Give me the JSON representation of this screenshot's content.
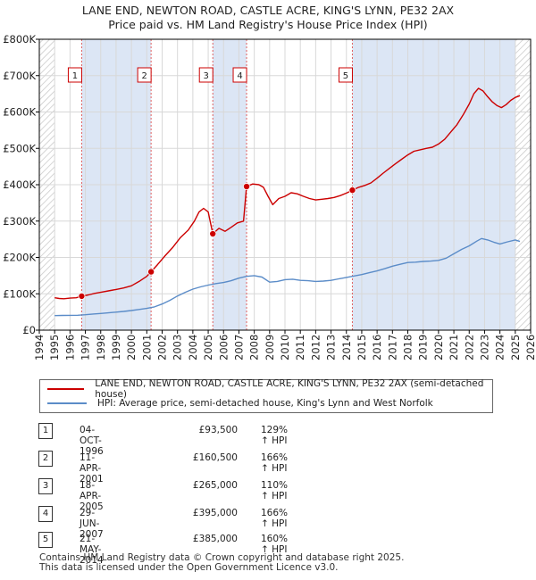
{
  "title_line1": "LANE END, NEWTON ROAD, CASTLE ACRE, KING'S LYNN, PE32 2AX",
  "title_line2": "Price paid vs. HM Land Registry's House Price Index (HPI)",
  "colors": {
    "price_paid": "#cc0000",
    "hpi": "#5b8cc8",
    "shade": "#dce6f5",
    "grid": "#d8d8d8",
    "marker_line": "#e06060"
  },
  "legend": {
    "price_paid_label": "LANE END, NEWTON ROAD, CASTLE ACRE, KING'S LYNN, PE32 2AX (semi-detached house)",
    "hpi_label": "HPI: Average price, semi-detached house, King's Lynn and West Norfolk"
  },
  "transactions": [
    {
      "num": "1",
      "date": "04-OCT-1996",
      "price": "£93,500",
      "hpi": "129% ↑ HPI"
    },
    {
      "num": "2",
      "date": "11-APR-2001",
      "price": "£160,500",
      "hpi": "166% ↑ HPI"
    },
    {
      "num": "3",
      "date": "18-APR-2005",
      "price": "£265,000",
      "hpi": "110% ↑ HPI"
    },
    {
      "num": "4",
      "date": "29-JUN-2007",
      "price": "£395,000",
      "hpi": "166% ↑ HPI"
    },
    {
      "num": "5",
      "date": "21-MAY-2014",
      "price": "£385,000",
      "hpi": "160% ↑ HPI"
    }
  ],
  "footer_line1": "Contains HM Land Registry data © Crown copyright and database right 2025.",
  "footer_line2": "This data is licensed under the Open Government Licence v3.0.",
  "chart_data": {
    "type": "line",
    "title": "LANE END, NEWTON ROAD, CASTLE ACRE, KING'S LYNN, PE32 2AX",
    "subtitle": "Price paid vs. HM Land Registry's House Price Index (HPI)",
    "xlim": [
      1994,
      2026
    ],
    "ylim": [
      0,
      800000
    ],
    "x_ticks": [
      "1994",
      "1995",
      "1996",
      "1997",
      "1998",
      "1999",
      "2000",
      "2001",
      "2002",
      "2003",
      "2004",
      "2005",
      "2006",
      "2007",
      "2008",
      "2009",
      "2010",
      "2011",
      "2012",
      "2013",
      "2014",
      "2015",
      "2016",
      "2017",
      "2018",
      "2019",
      "2020",
      "2021",
      "2022",
      "2023",
      "2024",
      "2025",
      "2026"
    ],
    "y_ticks": [
      {
        "value": 0,
        "label": "£0"
      },
      {
        "value": 100000,
        "label": "£100K"
      },
      {
        "value": 200000,
        "label": "£200K"
      },
      {
        "value": 300000,
        "label": "£300K"
      },
      {
        "value": 400000,
        "label": "£400K"
      },
      {
        "value": 500000,
        "label": "£500K"
      },
      {
        "value": 600000,
        "label": "£600K"
      },
      {
        "value": 700000,
        "label": "£700K"
      },
      {
        "value": 800000,
        "label": "£800K"
      }
    ],
    "grid": true,
    "shaded_periods": [
      [
        1994.0,
        1995.0
      ],
      [
        1996.76,
        2001.28
      ],
      [
        2005.3,
        2007.5
      ],
      [
        2014.39,
        2025.0
      ]
    ],
    "hatched_periods": [
      [
        1994.0,
        1995.0
      ],
      [
        2025.0,
        2026.0
      ]
    ],
    "sales": [
      {
        "label": "1",
        "x": 1996.76,
        "y": 93500
      },
      {
        "label": "2",
        "x": 2001.28,
        "y": 160500
      },
      {
        "label": "3",
        "x": 2005.3,
        "y": 265000
      },
      {
        "label": "4",
        "x": 2007.5,
        "y": 395000
      },
      {
        "label": "5",
        "x": 2014.39,
        "y": 385000
      }
    ],
    "series": [
      {
        "name": "LANE END, NEWTON ROAD, CASTLE ACRE, KING'S LYNN, PE32 2AX (semi-detached house)",
        "points": [
          [
            1995.0,
            89000
          ],
          [
            1995.3,
            87000
          ],
          [
            1995.6,
            86500
          ],
          [
            1996.0,
            88000
          ],
          [
            1996.4,
            89000
          ],
          [
            1996.76,
            93500
          ],
          [
            1997.2,
            97000
          ],
          [
            1997.6,
            101000
          ],
          [
            1998.0,
            104000
          ],
          [
            1998.5,
            108000
          ],
          [
            1999.0,
            112000
          ],
          [
            1999.5,
            116000
          ],
          [
            2000.0,
            122000
          ],
          [
            2000.5,
            134000
          ],
          [
            2001.0,
            148000
          ],
          [
            2001.28,
            160500
          ],
          [
            2001.7,
            180000
          ],
          [
            2002.2,
            205000
          ],
          [
            2002.7,
            228000
          ],
          [
            2003.2,
            255000
          ],
          [
            2003.7,
            275000
          ],
          [
            2004.1,
            300000
          ],
          [
            2004.4,
            325000
          ],
          [
            2004.7,
            335000
          ],
          [
            2005.0,
            325000
          ],
          [
            2005.3,
            265000
          ],
          [
            2005.7,
            280000
          ],
          [
            2006.1,
            272000
          ],
          [
            2006.5,
            283000
          ],
          [
            2006.9,
            295000
          ],
          [
            2007.3,
            300000
          ],
          [
            2007.5,
            395000
          ],
          [
            2007.9,
            402000
          ],
          [
            2008.3,
            400000
          ],
          [
            2008.6,
            393000
          ],
          [
            2008.9,
            368000
          ],
          [
            2009.2,
            345000
          ],
          [
            2009.6,
            362000
          ],
          [
            2010.0,
            368000
          ],
          [
            2010.4,
            378000
          ],
          [
            2010.8,
            375000
          ],
          [
            2011.2,
            368000
          ],
          [
            2011.6,
            362000
          ],
          [
            2012.0,
            358000
          ],
          [
            2012.4,
            360000
          ],
          [
            2012.8,
            362000
          ],
          [
            2013.2,
            365000
          ],
          [
            2013.6,
            370000
          ],
          [
            2014.0,
            377000
          ],
          [
            2014.39,
            385000
          ],
          [
            2014.8,
            393000
          ],
          [
            2015.2,
            398000
          ],
          [
            2015.6,
            405000
          ],
          [
            2016.0,
            418000
          ],
          [
            2016.4,
            432000
          ],
          [
            2016.8,
            445000
          ],
          [
            2017.2,
            458000
          ],
          [
            2017.6,
            470000
          ],
          [
            2018.0,
            482000
          ],
          [
            2018.4,
            492000
          ],
          [
            2018.8,
            496000
          ],
          [
            2019.2,
            500000
          ],
          [
            2019.6,
            503000
          ],
          [
            2020.0,
            512000
          ],
          [
            2020.4,
            525000
          ],
          [
            2020.8,
            545000
          ],
          [
            2021.2,
            565000
          ],
          [
            2021.6,
            592000
          ],
          [
            2022.0,
            622000
          ],
          [
            2022.3,
            650000
          ],
          [
            2022.6,
            665000
          ],
          [
            2022.9,
            658000
          ],
          [
            2023.2,
            642000
          ],
          [
            2023.5,
            628000
          ],
          [
            2023.8,
            618000
          ],
          [
            2024.1,
            612000
          ],
          [
            2024.4,
            620000
          ],
          [
            2024.7,
            632000
          ],
          [
            2025.0,
            640000
          ],
          [
            2025.3,
            645000
          ]
        ]
      },
      {
        "name": "HPI: Average price, semi-detached house, King's Lynn and West Norfolk",
        "points": [
          [
            1995.0,
            40000
          ],
          [
            1995.5,
            40500
          ],
          [
            1996.0,
            40800
          ],
          [
            1996.5,
            41000
          ],
          [
            1997.0,
            42500
          ],
          [
            1997.5,
            44500
          ],
          [
            1998.0,
            46000
          ],
          [
            1998.5,
            47500
          ],
          [
            1999.0,
            49500
          ],
          [
            1999.5,
            51500
          ],
          [
            2000.0,
            54000
          ],
          [
            2000.5,
            57000
          ],
          [
            2001.0,
            60000
          ],
          [
            2001.5,
            64000
          ],
          [
            2002.0,
            72000
          ],
          [
            2002.5,
            82000
          ],
          [
            2003.0,
            94000
          ],
          [
            2003.5,
            104000
          ],
          [
            2004.0,
            113000
          ],
          [
            2004.5,
            119000
          ],
          [
            2005.0,
            124000
          ],
          [
            2005.5,
            128000
          ],
          [
            2006.0,
            131000
          ],
          [
            2006.5,
            136000
          ],
          [
            2007.0,
            143000
          ],
          [
            2007.5,
            148000
          ],
          [
            2008.0,
            150000
          ],
          [
            2008.5,
            146000
          ],
          [
            2009.0,
            132000
          ],
          [
            2009.5,
            134000
          ],
          [
            2010.0,
            139000
          ],
          [
            2010.5,
            140000
          ],
          [
            2011.0,
            137000
          ],
          [
            2011.5,
            136000
          ],
          [
            2012.0,
            134000
          ],
          [
            2012.5,
            135000
          ],
          [
            2013.0,
            137000
          ],
          [
            2013.5,
            141000
          ],
          [
            2014.0,
            145000
          ],
          [
            2014.5,
            149000
          ],
          [
            2015.0,
            153000
          ],
          [
            2015.5,
            158000
          ],
          [
            2016.0,
            163000
          ],
          [
            2016.5,
            169000
          ],
          [
            2017.0,
            176000
          ],
          [
            2017.5,
            181000
          ],
          [
            2018.0,
            186000
          ],
          [
            2018.5,
            187000
          ],
          [
            2019.0,
            189000
          ],
          [
            2019.5,
            190000
          ],
          [
            2020.0,
            192000
          ],
          [
            2020.5,
            198000
          ],
          [
            2021.0,
            210000
          ],
          [
            2021.5,
            222000
          ],
          [
            2022.0,
            232000
          ],
          [
            2022.5,
            245000
          ],
          [
            2022.8,
            252000
          ],
          [
            2023.2,
            248000
          ],
          [
            2023.6,
            242000
          ],
          [
            2024.0,
            237000
          ],
          [
            2024.5,
            243000
          ],
          [
            2025.0,
            248000
          ],
          [
            2025.3,
            244000
          ]
        ]
      }
    ]
  }
}
